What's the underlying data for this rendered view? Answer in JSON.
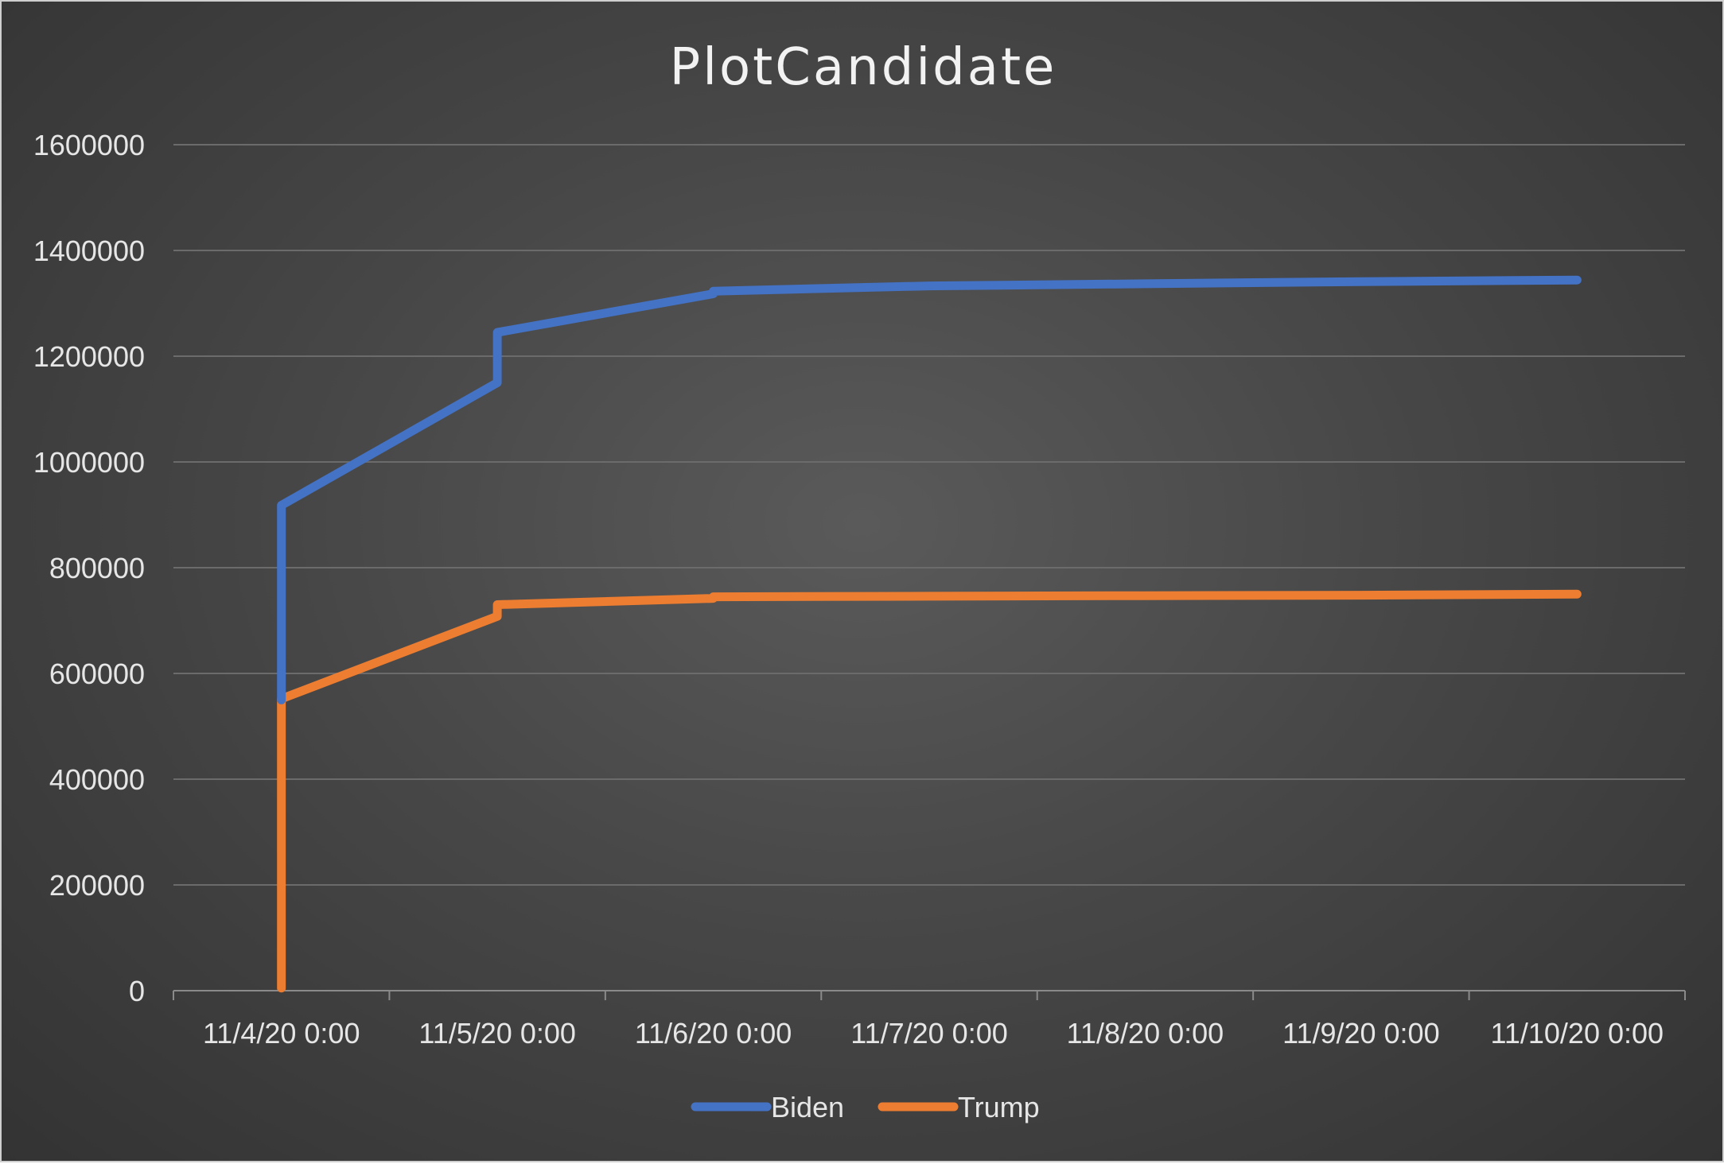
{
  "chart_data": {
    "type": "line",
    "title": "PlotCandidate",
    "xlabel": "",
    "ylabel": "",
    "grid": true,
    "legend_position": "bottom",
    "background": "#444444",
    "x_tick_labels": [
      "11/4/20 0:00",
      "11/5/20 0:00",
      "11/6/20 0:00",
      "11/7/20 0:00",
      "11/8/20 0:00",
      "11/9/20 0:00",
      "11/10/20 0:00"
    ],
    "x_range": [
      "2020-11-03T12:00",
      "2020-11-10T12:00"
    ],
    "y_ticks": [
      0,
      200000,
      400000,
      600000,
      800000,
      1000000,
      1200000,
      1400000,
      1600000
    ],
    "y_tick_labels": [
      "0",
      "200000",
      "400000",
      "600000",
      "800000",
      "1000000",
      "1200000",
      "1400000",
      "1600000"
    ],
    "ylim": [
      0,
      1600000
    ],
    "series": [
      {
        "name": "Biden",
        "color": "#4472C4",
        "points": [
          {
            "x": "2020-11-04T00:00",
            "y": 550000
          },
          {
            "x": "2020-11-04T00:00",
            "y": 918000
          },
          {
            "x": "2020-11-05T00:00",
            "y": 1150000
          },
          {
            "x": "2020-11-05T00:00",
            "y": 1245000
          },
          {
            "x": "2020-11-06T00:00",
            "y": 1318000
          },
          {
            "x": "2020-11-06T00:00",
            "y": 1323000
          },
          {
            "x": "2020-11-07T00:00",
            "y": 1333000
          },
          {
            "x": "2020-11-08T00:00",
            "y": 1337000
          },
          {
            "x": "2020-11-09T00:00",
            "y": 1341000
          },
          {
            "x": "2020-11-10T00:00",
            "y": 1344000
          }
        ]
      },
      {
        "name": "Trump",
        "color": "#ED7D31",
        "points": [
          {
            "x": "2020-11-04T00:00",
            "y": 5000
          },
          {
            "x": "2020-11-04T00:00",
            "y": 552000
          },
          {
            "x": "2020-11-05T00:00",
            "y": 708000
          },
          {
            "x": "2020-11-05T00:00",
            "y": 730000
          },
          {
            "x": "2020-11-06T00:00",
            "y": 742000
          },
          {
            "x": "2020-11-06T00:00",
            "y": 745000
          },
          {
            "x": "2020-11-07T00:00",
            "y": 746000
          },
          {
            "x": "2020-11-08T00:00",
            "y": 747000
          },
          {
            "x": "2020-11-09T00:00",
            "y": 748000
          },
          {
            "x": "2020-11-10T00:00",
            "y": 750000
          }
        ]
      }
    ]
  }
}
